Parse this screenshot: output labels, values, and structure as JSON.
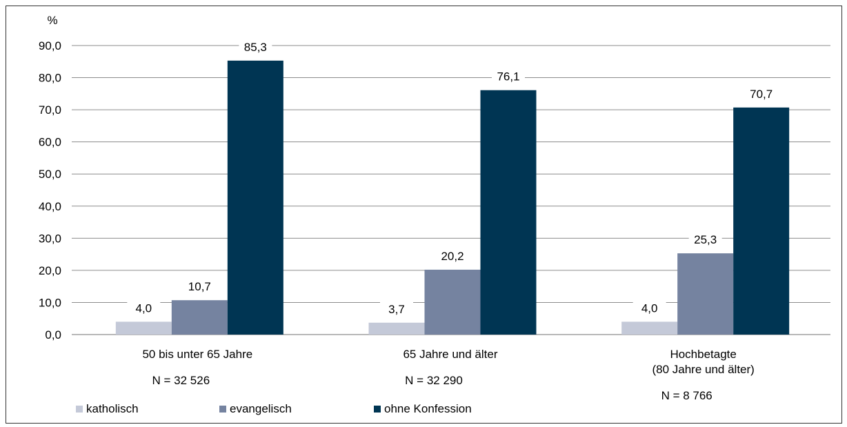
{
  "chart_data": {
    "type": "bar",
    "ylabel": "%",
    "ylim": [
      0,
      90
    ],
    "yticks": [
      "0,0",
      "10,0",
      "20,0",
      "30,0",
      "40,0",
      "50,0",
      "60,0",
      "70,0",
      "80,0",
      "90,0"
    ],
    "grid": true,
    "legend_position": "bottom-left",
    "categories": [
      [
        "50 bis unter 65 Jahre"
      ],
      [
        "65 Jahre und älter"
      ],
      [
        "Hochbetagte",
        "(80 Jahre und älter)"
      ]
    ],
    "sample_sizes": [
      "N = 32 526",
      "N = 32 290",
      "N = 8 766"
    ],
    "series": [
      {
        "name": "katholisch",
        "color": "#c4c9d8",
        "values": [
          4.0,
          3.7,
          4.0
        ],
        "labels": [
          "4,0",
          "3,7",
          "4,0"
        ]
      },
      {
        "name": "evangelisch",
        "color": "#7583a0",
        "values": [
          10.7,
          20.2,
          25.3
        ],
        "labels": [
          "10,7",
          "20,2",
          "25,3"
        ]
      },
      {
        "name": "ohne Konfession",
        "color": "#003553",
        "values": [
          85.3,
          76.1,
          70.7
        ],
        "labels": [
          "85,3",
          "76,1",
          "70,7"
        ]
      }
    ]
  }
}
